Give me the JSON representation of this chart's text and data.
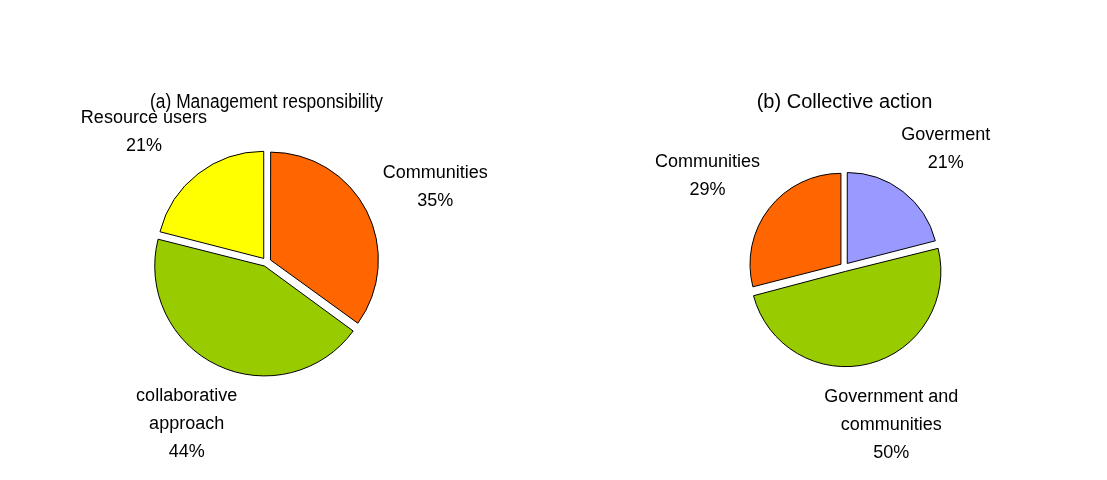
{
  "chart_data": [
    {
      "type": "pie",
      "title": "(a) Management responsibility",
      "categories": [
        "Communities",
        "collaborative approach",
        "Resource users"
      ],
      "values": [
        35,
        44,
        21
      ],
      "colors": [
        "#ff6600",
        "#99cc00",
        "#ffff00"
      ],
      "value_labels": [
        "35%",
        "44%",
        "21%"
      ],
      "legend": false
    },
    {
      "type": "pie",
      "title": "(b) Collective action",
      "categories": [
        "Goverment",
        "Government and communities",
        "Communities"
      ],
      "values": [
        21,
        50,
        29
      ],
      "colors": [
        "#9999ff",
        "#99cc00",
        "#ff6600"
      ],
      "value_labels": [
        "21%",
        "50%",
        "29%"
      ],
      "legend": false
    }
  ]
}
